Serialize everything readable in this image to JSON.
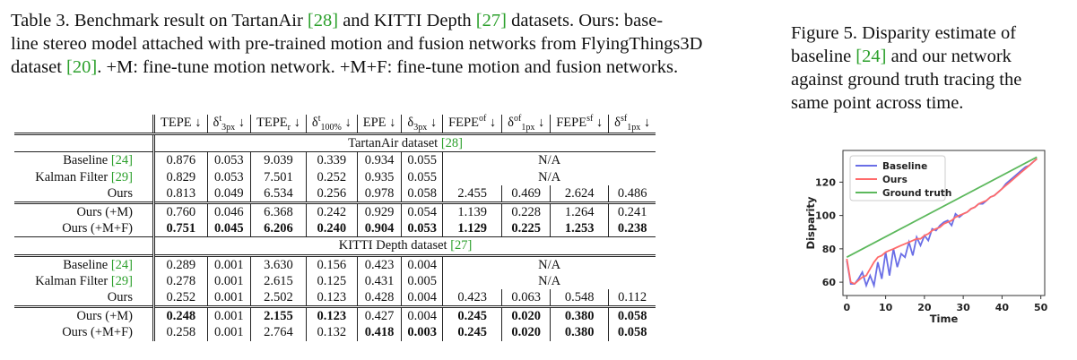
{
  "table_caption": {
    "prefix": "Table 3.  Benchmark result on TartanAir ",
    "cite1": "[28]",
    "mid1": " and KITTI Depth ",
    "cite2": "[27]",
    "mid2": " datasets.  Ours: base-",
    "line2": "line stereo model attached with pre-trained motion and fusion networks from FlyingThings3D",
    "line3a": "dataset ",
    "cite3": "[20]",
    "line3b": ".  +M: fine-tune motion network. +M+F: fine-tune motion and fusion networks."
  },
  "figure_caption": {
    "l1": "Figure 5.   Disparity estimate of",
    "l2a": "baseline  ",
    "cite": "[24]",
    "l2b": "  and  our  network",
    "l3": "against  ground  truth  tracing  the",
    "l4": "same point across time."
  },
  "table": {
    "headers": [
      "TEPE ↓",
      "δ",
      "TEPEr ↓",
      "δ",
      "EPE ↓",
      "δ",
      "FEPE",
      "δ",
      "FEPE",
      "δ"
    ],
    "header_parts": {
      "h1": "TEPE ↓",
      "h2_sup": "t",
      "h2_sub": "3px",
      "arrow": "↓",
      "h3_main": "TEPE",
      "h3_sub": "r",
      "h4_sup": "t",
      "h4_sub": "100%",
      "h5": "EPE ↓",
      "h6_sub": "3px",
      "h7_main": "FEPE",
      "h7_sup": "of",
      "h8_sup": "of",
      "h8_sub": "1px",
      "h9_main": "FEPE",
      "h9_sup": "sf",
      "h10_sup": "sf",
      "h10_sub": "1px",
      "delta": "δ"
    },
    "sections": [
      {
        "title": "TartanAir dataset ",
        "cite": "[28]",
        "rows": [
          {
            "label": "Baseline ",
            "cite": "[24]",
            "cells": [
              "0.876",
              "0.053",
              "9.039",
              "0.339",
              "0.934",
              "0.055"
            ],
            "na": "N/A"
          },
          {
            "label": "Kalman Filter ",
            "cite": "[29]",
            "cells": [
              "0.829",
              "0.053",
              "7.501",
              "0.252",
              "0.935",
              "0.055"
            ],
            "na": "N/A"
          },
          {
            "label": "Ours",
            "cells": [
              "0.813",
              "0.049",
              "6.534",
              "0.256",
              "0.978",
              "0.058",
              "2.455",
              "0.469",
              "2.624",
              "0.486"
            ]
          },
          {
            "label": "Ours (+M)",
            "cells": [
              "0.760",
              "0.046",
              "6.368",
              "0.242",
              "0.929",
              "0.054",
              "1.139",
              "0.228",
              "1.264",
              "0.241"
            ]
          },
          {
            "label": "Ours (+M+F)",
            "cells": [
              "0.751",
              "0.045",
              "6.206",
              "0.240",
              "0.904",
              "0.053",
              "1.129",
              "0.225",
              "1.253",
              "0.238"
            ]
          }
        ]
      },
      {
        "title": "KITTI Depth dataset ",
        "cite": "[27]",
        "rows": [
          {
            "label": "Baseline ",
            "cite": "[24]",
            "cells": [
              "0.289",
              "0.001",
              "3.630",
              "0.156",
              "0.423",
              "0.004"
            ],
            "na": "N/A"
          },
          {
            "label": "Kalman Filter ",
            "cite": "[29]",
            "cells": [
              "0.278",
              "0.001",
              "2.615",
              "0.125",
              "0.431",
              "0.005"
            ],
            "na": "N/A"
          },
          {
            "label": "Ours",
            "cells": [
              "0.252",
              "0.001",
              "2.502",
              "0.123",
              "0.428",
              "0.004",
              "0.423",
              "0.063",
              "0.548",
              "0.112"
            ]
          },
          {
            "label": "Ours (+M)",
            "cells": [
              "0.248",
              "0.001",
              "2.155",
              "0.123",
              "0.427",
              "0.004",
              "0.245",
              "0.020",
              "0.380",
              "0.058"
            ]
          },
          {
            "label": "Ours (+M+F)",
            "cells": [
              "0.258",
              "0.001",
              "2.764",
              "0.132",
              "0.418",
              "0.003",
              "0.245",
              "0.020",
              "0.380",
              "0.058"
            ]
          }
        ]
      }
    ]
  },
  "chart_data": {
    "type": "line",
    "xlabel": "Time",
    "ylabel": "Disparity",
    "xlim": [
      -1,
      51
    ],
    "ylim": [
      52,
      139
    ],
    "xticks": [
      0,
      10,
      20,
      30,
      40,
      50
    ],
    "yticks": [
      60,
      80,
      100,
      120
    ],
    "legend_position": "top-left",
    "series": [
      {
        "name": "Baseline",
        "color": "#6a6ee6",
        "x": [
          0,
          1,
          2,
          3,
          4,
          5,
          6,
          7,
          8,
          9,
          10,
          11,
          12,
          13,
          14,
          15,
          16,
          17,
          18,
          19,
          20,
          21,
          22,
          23,
          24,
          25,
          26,
          27,
          28,
          29,
          30,
          31,
          32,
          33,
          34,
          35,
          36,
          37,
          38,
          39,
          40,
          41,
          42,
          43,
          44,
          45,
          46,
          47,
          48,
          49
        ],
        "y": [
          73,
          59,
          59,
          62,
          66,
          58,
          64,
          58,
          72,
          62,
          78,
          64,
          80,
          69,
          77,
          75,
          84,
          76,
          87,
          82,
          88,
          85,
          92,
          91,
          94,
          96,
          97,
          94,
          101,
          99,
          101,
          102,
          104,
          105,
          107,
          107,
          109,
          111,
          112,
          114,
          116,
          119,
          121,
          123,
          125,
          127,
          129,
          130,
          132,
          134
        ]
      },
      {
        "name": "Ours",
        "color": "#ff6b6b",
        "x": [
          0,
          1,
          2,
          3,
          4,
          5,
          6,
          7,
          8,
          9,
          10,
          11,
          12,
          13,
          14,
          15,
          16,
          17,
          18,
          19,
          20,
          21,
          22,
          23,
          24,
          25,
          26,
          27,
          28,
          29,
          30,
          31,
          32,
          33,
          34,
          35,
          36,
          37,
          38,
          39,
          40,
          41,
          42,
          43,
          44,
          45,
          46,
          47,
          48,
          49
        ],
        "y": [
          74,
          60,
          59,
          61,
          63,
          64,
          68,
          72,
          75,
          76,
          78,
          79,
          80,
          81,
          82,
          83,
          84,
          85,
          86,
          86,
          88,
          89,
          91,
          92,
          93,
          95,
          96,
          97,
          99,
          100,
          101,
          102,
          104,
          105,
          107,
          108,
          109,
          111,
          112,
          114,
          116,
          118,
          120,
          122,
          124,
          126,
          128,
          130,
          132,
          134
        ]
      },
      {
        "name": "Ground truth",
        "color": "#5cb85c",
        "x": [
          0,
          49
        ],
        "y": [
          75,
          135
        ]
      }
    ]
  }
}
